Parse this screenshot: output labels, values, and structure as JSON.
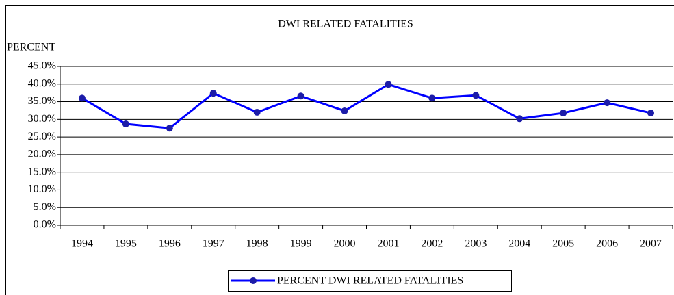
{
  "chart_data": {
    "type": "line",
    "title": "DWI RELATED FATALITIES",
    "y_label": "PERCENT",
    "categories": [
      "1994",
      "1995",
      "1996",
      "1997",
      "1998",
      "1999",
      "2000",
      "2001",
      "2002",
      "2003",
      "2004",
      "2005",
      "2006",
      "2007"
    ],
    "series": [
      {
        "name": "PERCENT DWI RELATED FATALITIES",
        "color": "#0000ff",
        "values": [
          36.0,
          28.7,
          27.5,
          37.4,
          32.0,
          36.6,
          32.4,
          39.9,
          36.0,
          36.8,
          30.2,
          31.8,
          34.7,
          31.8
        ]
      }
    ],
    "ylim": [
      0,
      45
    ],
    "yticks": [
      {
        "value": 0,
        "label": "0.0%"
      },
      {
        "value": 5,
        "label": "5.0%"
      },
      {
        "value": 10,
        "label": "10.0%"
      },
      {
        "value": 15,
        "label": "15.0%"
      },
      {
        "value": 20,
        "label": "20.0%"
      },
      {
        "value": 25,
        "label": "25.0%"
      },
      {
        "value": 30,
        "label": "30.0%"
      },
      {
        "value": 35,
        "label": "35.0%"
      },
      {
        "value": 40,
        "label": "40.0%"
      },
      {
        "value": 45,
        "label": "45.0%"
      }
    ],
    "grid": true,
    "legend": "bottom"
  }
}
